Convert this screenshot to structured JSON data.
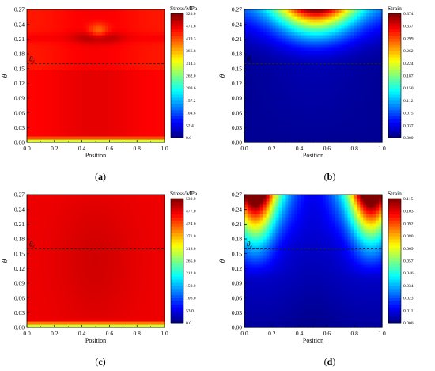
{
  "chart_data": [
    {
      "type": "heatmap",
      "panel_label": "a",
      "xlabel": "Position",
      "ylabel": "θ",
      "xlim": [
        0.0,
        1.0
      ],
      "ylim": [
        0.0,
        0.27
      ],
      "xticks": [
        "0.0",
        "0.2",
        "0.4",
        "0.6",
        "0.8",
        "1.0"
      ],
      "yticks": [
        "0.00",
        "0.03",
        "0.06",
        "0.09",
        "0.12",
        "0.15",
        "0.18",
        "0.21",
        "0.24",
        "0.27"
      ],
      "colorbar_title": "Stress/MPa",
      "colorbar_range": [
        0.0,
        523.0
      ],
      "colorbar_ticks": [
        "0.0",
        "52.4",
        "104.8",
        "157.2",
        "209.6",
        "262.0",
        "314.5",
        "366.8",
        "419.3",
        "471.6",
        "523.0"
      ],
      "threshold_label": "θ",
      "threshold_subscript": "c",
      "threshold_value": 0.16,
      "field": "stress_a"
    },
    {
      "type": "heatmap",
      "panel_label": "b",
      "xlabel": "Position",
      "ylabel": "θ",
      "xlim": [
        0.0,
        1.0
      ],
      "ylim": [
        0.0,
        0.27
      ],
      "xticks": [
        "0.0",
        "0.2",
        "0.4",
        "0.6",
        "0.8",
        "1.0"
      ],
      "yticks": [
        "0.00",
        "0.03",
        "0.06",
        "0.09",
        "0.12",
        "0.15",
        "0.18",
        "0.21",
        "0.24",
        "0.27"
      ],
      "colorbar_title": "Strain",
      "colorbar_range": [
        0.0,
        0.374
      ],
      "colorbar_ticks": [
        "0.000",
        "0.037",
        "0.075",
        "0.112",
        "0.150",
        "0.187",
        "0.224",
        "0.262",
        "0.299",
        "0.337",
        "0.374"
      ],
      "threshold_label": "θ",
      "threshold_subscript": "c",
      "threshold_value": 0.16,
      "field": "strain_b"
    },
    {
      "type": "heatmap",
      "panel_label": "c",
      "xlabel": "Position",
      "ylabel": "θ",
      "xlim": [
        0.0,
        1.0
      ],
      "ylim": [
        0.0,
        0.27
      ],
      "xticks": [
        "0.0",
        "0.2",
        "0.4",
        "0.6",
        "0.8",
        "1.0"
      ],
      "yticks": [
        "0.00",
        "0.03",
        "0.06",
        "0.09",
        "0.12",
        "0.15",
        "0.18",
        "0.21",
        "0.24",
        "0.27"
      ],
      "colorbar_title": "Stress/MPa",
      "colorbar_range": [
        0.0,
        530.0
      ],
      "colorbar_ticks": [
        "0.0",
        "53.0",
        "106.0",
        "159.0",
        "212.0",
        "265.0",
        "318.0",
        "371.0",
        "424.0",
        "477.0",
        "530.0"
      ],
      "threshold_label": "θ",
      "threshold_subscript": "c",
      "threshold_value": 0.16,
      "field": "stress_c"
    },
    {
      "type": "heatmap",
      "panel_label": "d",
      "xlabel": "Position",
      "ylabel": "θ",
      "xlim": [
        0.0,
        1.0
      ],
      "ylim": [
        0.0,
        0.27
      ],
      "xticks": [
        "0.0",
        "0.2",
        "0.4",
        "0.6",
        "0.8",
        "1.0"
      ],
      "yticks": [
        "0.00",
        "0.03",
        "0.06",
        "0.09",
        "0.12",
        "0.15",
        "0.18",
        "0.21",
        "0.24",
        "0.27"
      ],
      "colorbar_title": "Strain",
      "colorbar_range": [
        0.0,
        0.115
      ],
      "colorbar_ticks": [
        "0.000",
        "0.011",
        "0.023",
        "0.034",
        "0.046",
        "0.057",
        "0.069",
        "0.080",
        "0.092",
        "0.103",
        "0.115"
      ],
      "threshold_label": "θ",
      "threshold_subscript": "c",
      "threshold_value": 0.16,
      "field": "strain_d"
    }
  ]
}
